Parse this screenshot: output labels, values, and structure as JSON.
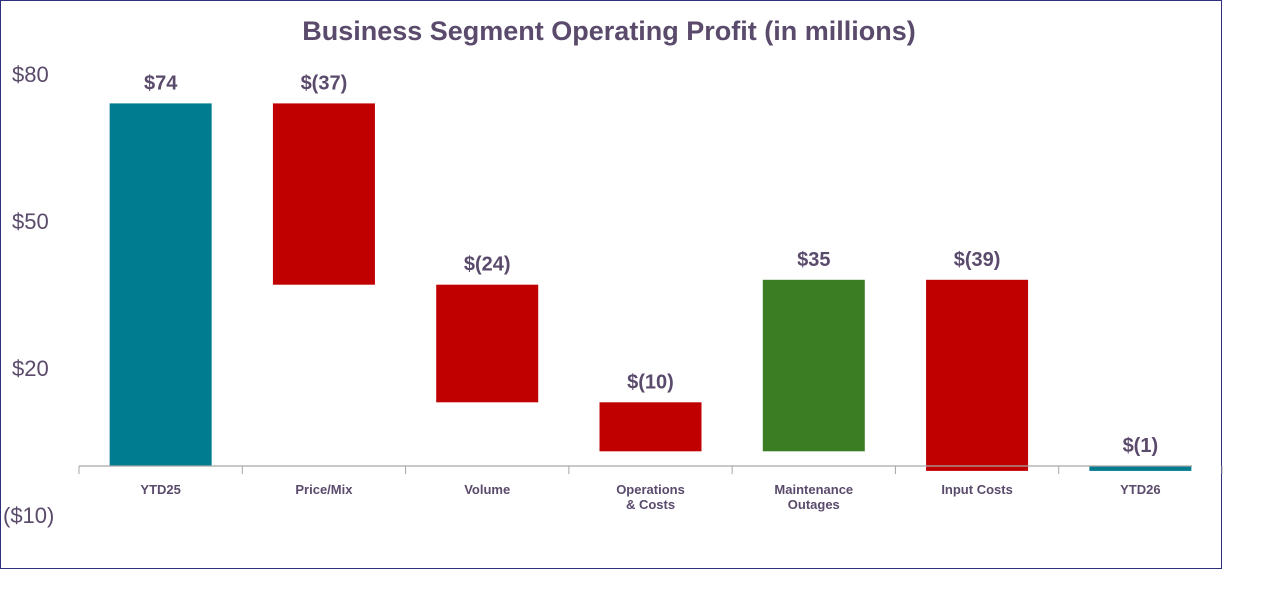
{
  "chart_data": {
    "type": "bar",
    "subtype": "waterfall",
    "title": "Business Segment Operating Profit (in millions)",
    "xlabel": "",
    "ylabel": "",
    "ylim": [
      -10,
      80
    ],
    "yticks": [
      {
        "value": 80,
        "label": "$80"
      },
      {
        "value": 50,
        "label": "$50"
      },
      {
        "value": 20,
        "label": "$20"
      },
      {
        "value": -10,
        "label": "($10)"
      }
    ],
    "grid": false,
    "categories": [
      "YTD25",
      "Price/Mix",
      "Volume",
      "Operations\n& Costs",
      "Maintenance\nOutages",
      "Input Costs",
      "YTD26"
    ],
    "values": [
      74,
      -37,
      -24,
      -10,
      35,
      -39,
      -1
    ],
    "bar_types": [
      "total",
      "delta",
      "delta",
      "delta",
      "delta",
      "delta",
      "total"
    ],
    "data_labels": [
      "$74",
      "$(37)",
      "$(24)",
      "$(10)",
      "$35",
      "$(39)",
      "$(1)"
    ],
    "colors": {
      "total": "#007c91",
      "decrease": "#c00000",
      "increase": "#3a7d22",
      "title": "#5a4a6b",
      "axis_text": "#5a4a6b",
      "baseline": "#a6a6a6",
      "frame": "#2e2f7d"
    }
  }
}
